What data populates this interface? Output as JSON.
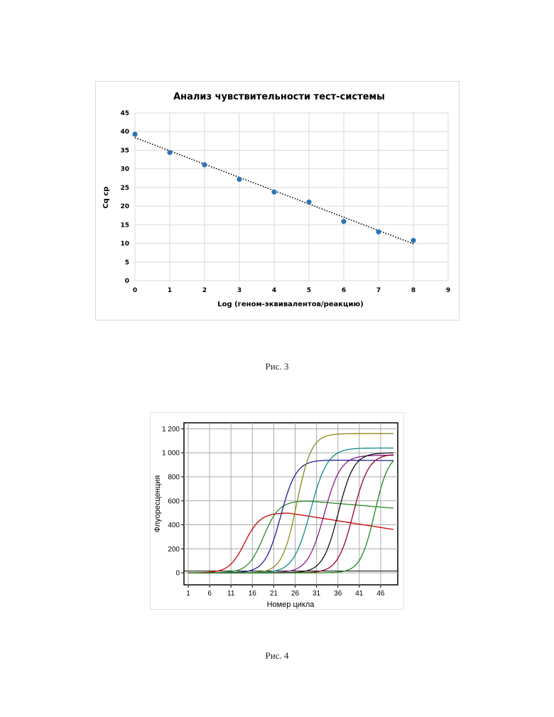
{
  "chart_data": [
    {
      "type": "scatter",
      "title": "Анализ чувствительности тест-системы",
      "xlabel": "Log (геном-эквивалентов/реакцию)",
      "ylabel": "Cq cp",
      "xlim": [
        0,
        9
      ],
      "ylim": [
        0,
        45
      ],
      "x_ticks": [
        "0",
        "1",
        "2",
        "3",
        "4",
        "5",
        "6",
        "7",
        "8",
        "9"
      ],
      "y_ticks": [
        "0",
        "5",
        "10",
        "15",
        "20",
        "25",
        "30",
        "35",
        "40",
        "45"
      ],
      "grid": true,
      "legend": "none",
      "colors": {
        "points": "#2e75b6",
        "trendline": "#000000"
      },
      "series": [
        {
          "x": [
            0,
            1,
            2,
            3,
            4,
            5,
            6,
            7,
            8
          ],
          "y": [
            39.3,
            34.4,
            31.1,
            27.2,
            23.8,
            21.1,
            15.9,
            13.1,
            10.8
          ]
        }
      ],
      "trendline": {
        "style": "dotted",
        "x": [
          0,
          8
        ],
        "y": [
          38.4,
          9.9
        ]
      }
    },
    {
      "type": "line",
      "xlabel": "Номер цикла",
      "ylabel": "Флуоресценция",
      "xlim": [
        0,
        50
      ],
      "ylim": [
        -100,
        1250
      ],
      "x_ticks": [
        "1",
        "6",
        "11",
        "16",
        "21",
        "26",
        "31",
        "36",
        "41",
        "46"
      ],
      "y_ticks": [
        "0",
        "200",
        "400",
        "600",
        "800",
        "1 000",
        "1 200"
      ],
      "threshold": 15,
      "grid": true,
      "legend": "none",
      "series": [
        {
          "color": "#cc0000",
          "Ct": 14.2,
          "plateau": 500,
          "k": 0.55,
          "decline": 5.6
        },
        {
          "color": "#2a8a2a",
          "Ct": 18.6,
          "plateau": 600,
          "k": 0.55,
          "decline": 3.0
        },
        {
          "color": "#1f1f8f",
          "Ct": 22.6,
          "plateau": 940,
          "k": 0.55,
          "decline": 0.3
        },
        {
          "color": "#8a8a1a",
          "Ct": 26.4,
          "plateau": 1160,
          "k": 0.58,
          "decline": 0
        },
        {
          "color": "#0e8a8a",
          "Ct": 29.6,
          "plateau": 1040,
          "k": 0.5,
          "decline": 0
        },
        {
          "color": "#8a1a8a",
          "Ct": 32.8,
          "plateau": 980,
          "k": 0.52,
          "decline": 0
        },
        {
          "color": "#111111",
          "Ct": 36.1,
          "plateau": 1000,
          "k": 0.55,
          "decline": 0
        },
        {
          "color": "#990022",
          "Ct": 39.6,
          "plateau": 990,
          "k": 0.55,
          "decline": 0
        },
        {
          "color": "#1d8a1d",
          "Ct": 44.6,
          "plateau": 1000,
          "k": 0.6,
          "decline": 0
        }
      ]
    }
  ],
  "captions": {
    "fig3": "Рис. 3",
    "fig4": "Рис. 4"
  }
}
